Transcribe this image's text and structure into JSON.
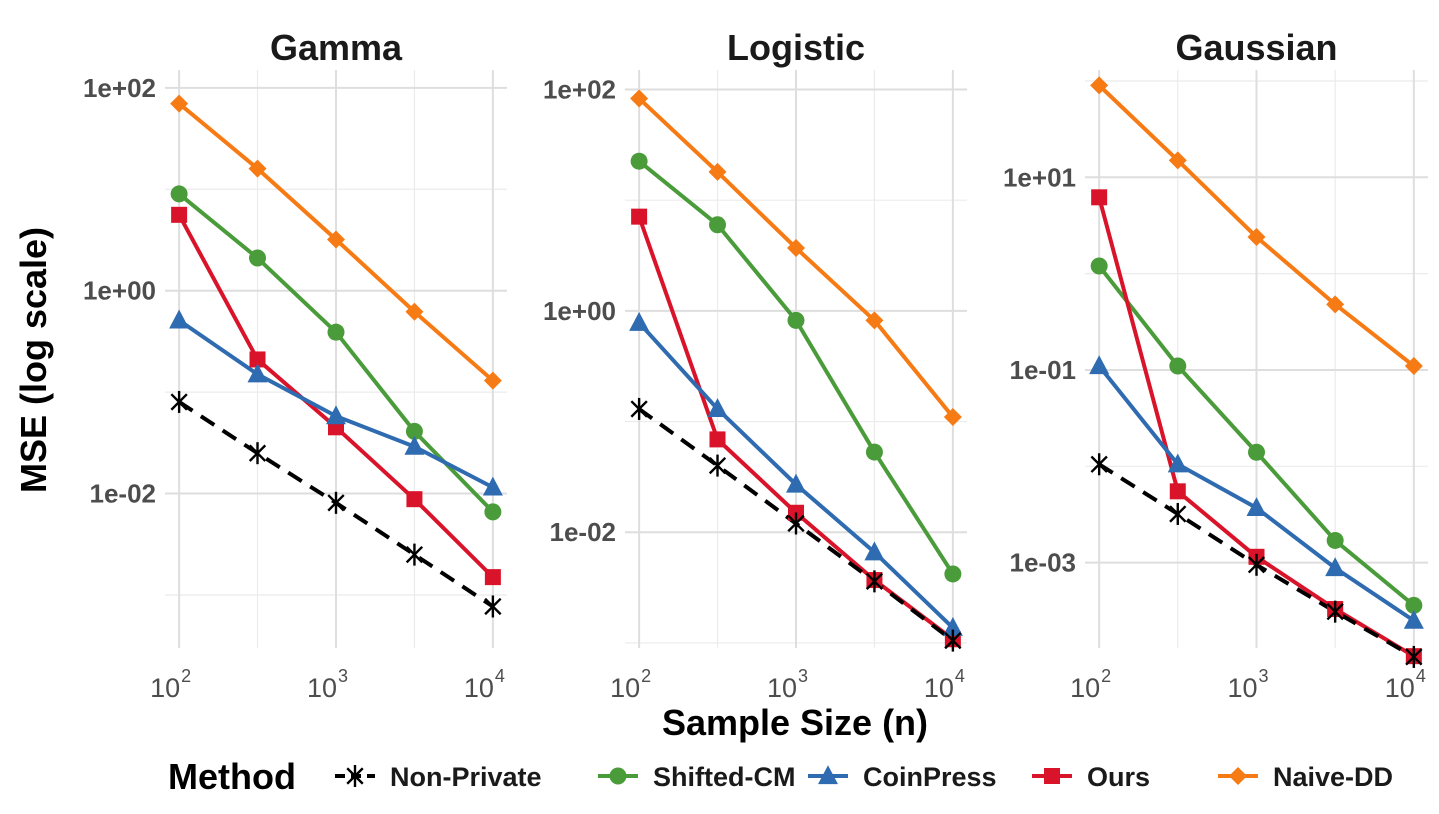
{
  "chart_data": {
    "type": "line",
    "log_x": true,
    "log_y": true,
    "xlabel": "Sample Size (n)",
    "ylabel": "MSE (log scale)",
    "x": [
      100,
      316,
      1000,
      3162,
      10000
    ],
    "x_ticks": [
      {
        "value": 100,
        "base": "10",
        "exp": "2"
      },
      {
        "value": 1000,
        "base": "10",
        "exp": "3"
      },
      {
        "value": 10000,
        "base": "10",
        "exp": "4"
      }
    ],
    "legend": {
      "title": "Method",
      "position": "bottom",
      "entries": [
        {
          "name": "Non-Private",
          "color": "#000000",
          "marker": "asterisk",
          "dash": true
        },
        {
          "name": "Shifted-CM",
          "color": "#4a9c3b",
          "marker": "circle",
          "dash": false
        },
        {
          "name": "CoinPress",
          "color": "#2f6bb0",
          "marker": "triangle",
          "dash": false
        },
        {
          "name": "Ours",
          "color": "#d9142a",
          "marker": "square",
          "dash": false
        },
        {
          "name": "Naive-DD",
          "color": "#f77b15",
          "marker": "diamond",
          "dash": false
        }
      ]
    },
    "panels": [
      {
        "title": "Gamma",
        "ylim": [
          0.0003,
          150
        ],
        "y_ticks": [
          {
            "value": 100,
            "label": "1e+02"
          },
          {
            "value": 1,
            "label": "1e+00"
          },
          {
            "value": 0.01,
            "label": "1e-02"
          }
        ],
        "series": [
          {
            "name": "Naive-DD",
            "values": [
              70,
              16,
              3.2,
              0.62,
              0.13
            ]
          },
          {
            "name": "Shifted-CM",
            "values": [
              9.0,
              2.1,
              0.39,
              0.041,
              0.0066
            ]
          },
          {
            "name": "Ours",
            "values": [
              5.6,
              0.21,
              0.045,
              0.0088,
              0.0015
            ]
          },
          {
            "name": "CoinPress",
            "values": [
              0.51,
              0.15,
              0.058,
              0.029,
              0.0115
            ]
          },
          {
            "name": "Non-Private",
            "values": [
              0.08,
              0.025,
              0.0081,
              0.0025,
              0.00077
            ]
          }
        ]
      },
      {
        "title": "Logistic",
        "ylim": [
          0.0009,
          150
        ],
        "y_ticks": [
          {
            "value": 100,
            "label": "1e+02"
          },
          {
            "value": 1,
            "label": "1e+00"
          },
          {
            "value": 0.01,
            "label": "1e-02"
          }
        ],
        "series": [
          {
            "name": "Naive-DD",
            "values": [
              83,
              18,
              3.7,
              0.82,
              0.11
            ]
          },
          {
            "name": "Shifted-CM",
            "values": [
              22.5,
              6.0,
              0.82,
              0.053,
              0.0042
            ]
          },
          {
            "name": "Ours",
            "values": [
              7.1,
              0.069,
              0.015,
              0.0037,
              0.00108
            ]
          },
          {
            "name": "CoinPress",
            "values": [
              0.78,
              0.13,
              0.027,
              0.0066,
              0.00137
            ]
          },
          {
            "name": "Non-Private",
            "values": [
              0.13,
              0.04,
              0.012,
              0.0036,
              0.00105
            ]
          }
        ]
      },
      {
        "title": "Gaussian",
        "ylim": [
          0.00013,
          130
        ],
        "y_ticks": [
          {
            "value": 10,
            "label": "1e+01"
          },
          {
            "value": 0.1,
            "label": "1e-01"
          },
          {
            "value": 0.001,
            "label": "1e-03"
          }
        ],
        "series": [
          {
            "name": "Naive-DD",
            "values": [
              90,
              15,
              2.4,
              0.48,
              0.11
            ]
          },
          {
            "name": "Shifted-CM",
            "values": [
              1.2,
              0.11,
              0.014,
              0.0017,
              0.00036
            ]
          },
          {
            "name": "Ours",
            "values": [
              6.2,
              0.0055,
              0.00115,
              0.00033,
              0.000107
            ]
          },
          {
            "name": "CoinPress",
            "values": [
              0.11,
              0.0105,
              0.0037,
              0.00088,
              0.00025
            ]
          },
          {
            "name": "Non-Private",
            "values": [
              0.0105,
              0.0032,
              0.00095,
              0.00031,
              0.000105
            ]
          }
        ]
      }
    ]
  }
}
